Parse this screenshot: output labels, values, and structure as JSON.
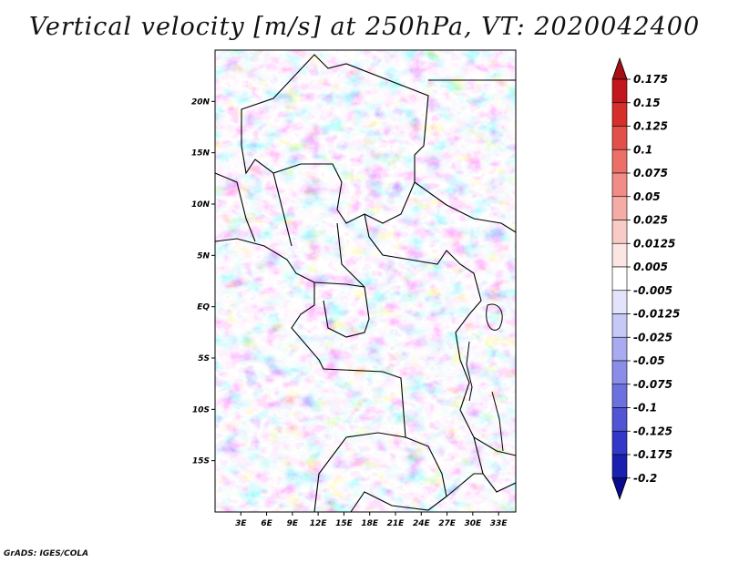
{
  "title": "Vertical velocity [m/s] at 250hPa, VT: 2020042400",
  "credit": "GrADS: IGES/COLA",
  "map": {
    "lat_labels": [
      "20N",
      "15N",
      "10N",
      "5N",
      "EQ",
      "5S",
      "10S",
      "15S"
    ],
    "lat_values": [
      20,
      15,
      10,
      5,
      0,
      -5,
      -10,
      -15
    ],
    "lon_labels": [
      "3E",
      "6E",
      "9E",
      "12E",
      "15E",
      "18E",
      "21E",
      "24E",
      "27E",
      "30E",
      "33E"
    ],
    "lon_values": [
      3,
      6,
      9,
      12,
      15,
      18,
      21,
      24,
      27,
      30,
      33
    ],
    "lat_range": [
      -20,
      25
    ],
    "lon_range": [
      0,
      35
    ],
    "palette_note": "blue = negative (subsidence/ascent sign), red = positive"
  },
  "colorbar": {
    "labels": [
      "0.175",
      "0.15",
      "0.125",
      "0.1",
      "0.075",
      "0.05",
      "0.025",
      "0.0125",
      "0.005",
      "-0.005",
      "-0.0125",
      "-0.025",
      "-0.05",
      "-0.075",
      "-0.1",
      "-0.125",
      "-0.175",
      "-0.2"
    ],
    "colors": [
      "#a50f15",
      "#c2171d",
      "#d62f2a",
      "#e3504a",
      "#ec7067",
      "#f18d86",
      "#f5aca6",
      "#f9cbc6",
      "#fce6e3",
      "#ffffff",
      "#e3e4fb",
      "#c6c8f6",
      "#a8abef",
      "#8b8ee8",
      "#6d70df",
      "#5054d5",
      "#3338c8",
      "#1a1fb0",
      "#0a0a8c"
    ]
  }
}
